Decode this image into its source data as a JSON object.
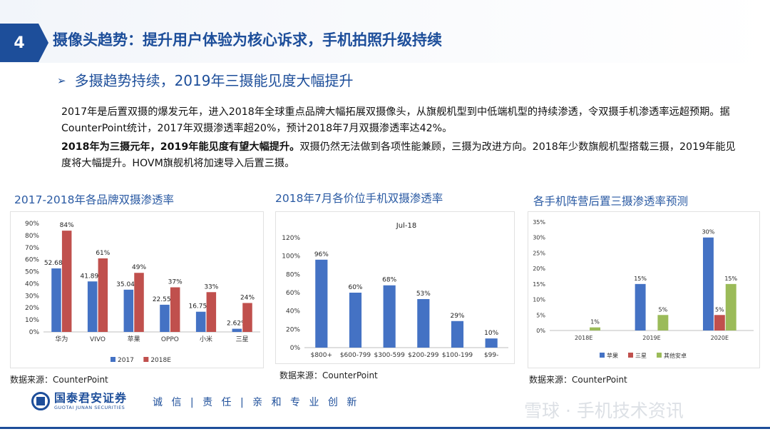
{
  "header": {
    "section_number": "4",
    "title": "摄像头趋势：提升用户体验为核心诉求，手机拍照升级持续",
    "subtitle": "多摄趋势持续，2019年三摄能见度大幅提升"
  },
  "body": {
    "para1": "2017年是后置双摄的爆发元年，进入2018年全球重点品牌大幅拓展双摄像头，从旗舰机型到中低端机型的持续渗透，令双摄手机渗透率远超预期。据CounterPoint统计，2017年双摄渗透率超20%，预计2018年7月双摄渗透率达42%。",
    "para2_bold": "2018年为三摄元年，2019年能见度有望大幅提升。",
    "para2_rest": "双摄仍然无法做到各项性能兼顾，三摄为改进方向。2018年少数旗舰机型搭载三摄，2019年能见度将大幅提升。HOVM旗舰机将加速导入后置三摄。"
  },
  "chart_data": [
    {
      "type": "bar",
      "title": "2017-2018年各品牌双摄渗透率",
      "categories": [
        "华为",
        "VIVO",
        "苹果",
        "OPPO",
        "小米",
        "三星"
      ],
      "series": [
        {
          "name": "2017",
          "values": [
            52.68,
            41.89,
            35.04,
            22.55,
            16.75,
            2.62
          ],
          "labels": [
            "52.68%",
            "41.89%",
            "35.04%",
            "22.55%",
            "16.75%",
            "2.62%"
          ]
        },
        {
          "name": "2018E",
          "values": [
            84,
            61,
            49,
            37,
            33,
            24
          ],
          "labels": [
            "84%",
            "61%",
            "49%",
            "37%",
            "33%",
            "24%"
          ]
        }
      ],
      "yticks": [
        "0%",
        "10%",
        "20%",
        "30%",
        "40%",
        "50%",
        "60%",
        "70%",
        "80%",
        "90%"
      ],
      "ylim": [
        0,
        90
      ],
      "legend": "bottom",
      "colors": [
        "#4472c4",
        "#c0504d"
      ],
      "source": "数据来源：CounterPoint"
    },
    {
      "type": "bar",
      "title": "2018年7月各价位手机双摄渗透率",
      "inner_title": "Jul-18",
      "categories": [
        "$800+",
        "$600-799",
        "$300-599",
        "$200-299",
        "$100-199",
        "$99-"
      ],
      "series": [
        {
          "values": [
            96,
            60,
            68,
            53,
            29,
            10
          ],
          "labels": [
            "96%",
            "60%",
            "68%",
            "53%",
            "29%",
            "10%"
          ]
        }
      ],
      "yticks": [
        "0%",
        "20%",
        "40%",
        "60%",
        "80%",
        "100%",
        "120%"
      ],
      "ylim": [
        0,
        120
      ],
      "colors": [
        "#4472c4"
      ],
      "source": "数据来源：CounterPoint"
    },
    {
      "type": "bar",
      "title": "各手机阵营后置三摄渗透率预测",
      "categories": [
        "2018E",
        "2019E",
        "2020E"
      ],
      "series": [
        {
          "name": "苹果",
          "values": [
            null,
            15,
            30
          ],
          "labels": [
            "",
            "15%",
            "30%"
          ]
        },
        {
          "name": "三星",
          "values": [
            null,
            null,
            5
          ],
          "labels": [
            "",
            "",
            "5%"
          ]
        },
        {
          "name": "其他安卓",
          "values": [
            1,
            5,
            15
          ],
          "labels": [
            "1%",
            "5%",
            "15%"
          ]
        }
      ],
      "yticks": [
        "0%",
        "5%",
        "10%",
        "15%",
        "20%",
        "25%",
        "30%",
        "35%"
      ],
      "ylim": [
        0,
        35
      ],
      "legend": "bottom",
      "colors": [
        "#4472c4",
        "#c0504d",
        "#9bbb59"
      ],
      "source": "数据来源：CounterPoint"
    }
  ],
  "footer": {
    "logo_cn": "国泰君安证券",
    "logo_en": "GUOTAI JUNAN SECURITIES",
    "slogan": "诚 信 | 责 任 | 亲 和  专 业  创 新",
    "watermark": "雪球 · 手机技术资讯"
  }
}
